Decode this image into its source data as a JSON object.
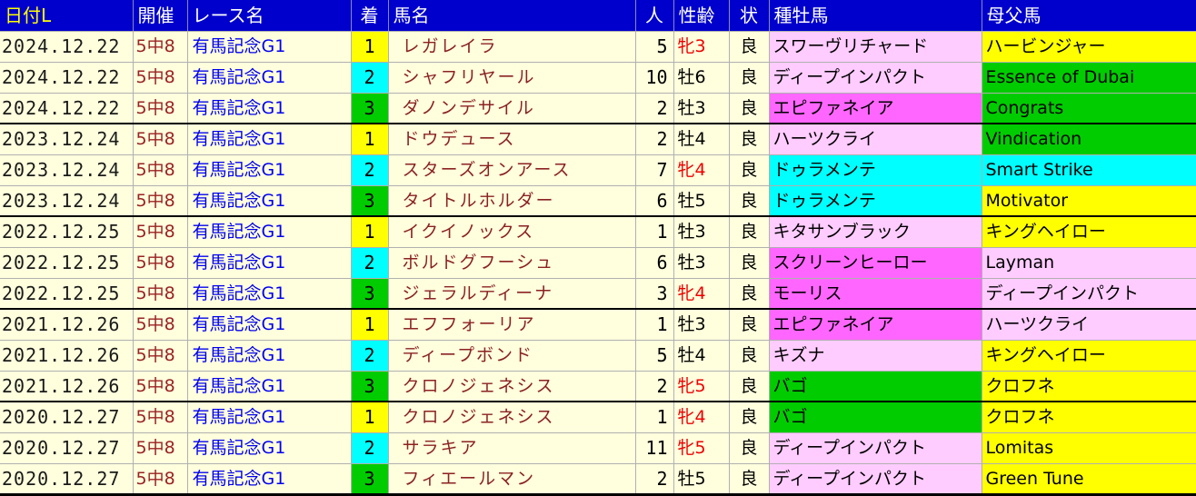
{
  "palette": {
    "header_bg": "#0000CC",
    "header_text": "#FFFFFF",
    "header_text_active": "#FFFF00",
    "row_bg": "#FFFFDE",
    "grid_line": "#B0B0B0",
    "group_line": "#000000",
    "date_text": "#1A1A1A",
    "meeting_text": "#992222",
    "race_text": "#0000EE",
    "horse_text": "#8B2222",
    "female_text": "#EE0000",
    "black_text": "#000000",
    "yellow": "#FFFF00",
    "cyan": "#00FFFF",
    "green": "#00CC00",
    "pink_light": "#FFCCFF",
    "pink_bright": "#FF66FF"
  },
  "table": {
    "columns": [
      {
        "key": "date",
        "label": "日付L"
      },
      {
        "key": "meeting",
        "label": "開催"
      },
      {
        "key": "race",
        "label": "レース名"
      },
      {
        "key": "finish",
        "label": "着"
      },
      {
        "key": "horse",
        "label": "馬名"
      },
      {
        "key": "pop",
        "label": "人"
      },
      {
        "key": "sexage",
        "label": "性齢"
      },
      {
        "key": "cond",
        "label": "状"
      },
      {
        "key": "sire",
        "label": "種牡馬"
      },
      {
        "key": "damsire",
        "label": "母父馬"
      }
    ],
    "rows": [
      {
        "date": "2024.12.22",
        "meeting": "5中8",
        "race": "有馬記念G1",
        "finish": "1",
        "finish_color": "yellow",
        "horse": "レガレイラ",
        "pop": "5",
        "sexage": "牝3",
        "female": true,
        "cond": "良",
        "sire": "スワーヴリチャード",
        "sire_color": "pink_light",
        "damsire": "ハービンジャー",
        "damsire_color": "yellow",
        "group_start": false
      },
      {
        "date": "2024.12.22",
        "meeting": "5中8",
        "race": "有馬記念G1",
        "finish": "2",
        "finish_color": "cyan",
        "horse": "シャフリヤール",
        "pop": "10",
        "sexage": "牡6",
        "female": false,
        "cond": "良",
        "sire": "ディープインパクト",
        "sire_color": "pink_light",
        "damsire": "Essence of Dubai",
        "damsire_color": "green",
        "group_start": false
      },
      {
        "date": "2024.12.22",
        "meeting": "5中8",
        "race": "有馬記念G1",
        "finish": "3",
        "finish_color": "green",
        "horse": "ダノンデサイル",
        "pop": "2",
        "sexage": "牡3",
        "female": false,
        "cond": "良",
        "sire": "エピファネイア",
        "sire_color": "pink_bright",
        "damsire": "Congrats",
        "damsire_color": "green",
        "group_start": false
      },
      {
        "date": "2023.12.24",
        "meeting": "5中8",
        "race": "有馬記念G1",
        "finish": "1",
        "finish_color": "yellow",
        "horse": "ドウデュース",
        "pop": "2",
        "sexage": "牡4",
        "female": false,
        "cond": "良",
        "sire": "ハーツクライ",
        "sire_color": "pink_light",
        "damsire": "Vindication",
        "damsire_color": "green",
        "group_start": true
      },
      {
        "date": "2023.12.24",
        "meeting": "5中8",
        "race": "有馬記念G1",
        "finish": "2",
        "finish_color": "cyan",
        "horse": "スターズオンアース",
        "pop": "7",
        "sexage": "牝4",
        "female": true,
        "cond": "良",
        "sire": "ドゥラメンテ",
        "sire_color": "cyan",
        "damsire": "Smart Strike",
        "damsire_color": "cyan",
        "group_start": false
      },
      {
        "date": "2023.12.24",
        "meeting": "5中8",
        "race": "有馬記念G1",
        "finish": "3",
        "finish_color": "green",
        "horse": "タイトルホルダー",
        "pop": "6",
        "sexage": "牡5",
        "female": false,
        "cond": "良",
        "sire": "ドゥラメンテ",
        "sire_color": "cyan",
        "damsire": "Motivator",
        "damsire_color": "yellow",
        "group_start": false
      },
      {
        "date": "2022.12.25",
        "meeting": "5中8",
        "race": "有馬記念G1",
        "finish": "1",
        "finish_color": "yellow",
        "horse": "イクイノックス",
        "pop": "1",
        "sexage": "牡3",
        "female": false,
        "cond": "良",
        "sire": "キタサンブラック",
        "sire_color": "pink_light",
        "damsire": "キングヘイロー",
        "damsire_color": "yellow",
        "group_start": true
      },
      {
        "date": "2022.12.25",
        "meeting": "5中8",
        "race": "有馬記念G1",
        "finish": "2",
        "finish_color": "cyan",
        "horse": "ボルドグフーシュ",
        "pop": "6",
        "sexage": "牡3",
        "female": false,
        "cond": "良",
        "sire": "スクリーンヒーロー",
        "sire_color": "pink_bright",
        "damsire": "Layman",
        "damsire_color": "pink_light",
        "group_start": false
      },
      {
        "date": "2022.12.25",
        "meeting": "5中8",
        "race": "有馬記念G1",
        "finish": "3",
        "finish_color": "green",
        "horse": "ジェラルディーナ",
        "pop": "3",
        "sexage": "牝4",
        "female": true,
        "cond": "良",
        "sire": "モーリス",
        "sire_color": "pink_bright",
        "damsire": "ディープインパクト",
        "damsire_color": "pink_light",
        "group_start": false
      },
      {
        "date": "2021.12.26",
        "meeting": "5中8",
        "race": "有馬記念G1",
        "finish": "1",
        "finish_color": "yellow",
        "horse": "エフフォーリア",
        "pop": "1",
        "sexage": "牡3",
        "female": false,
        "cond": "良",
        "sire": "エピファネイア",
        "sire_color": "pink_bright",
        "damsire": "ハーツクライ",
        "damsire_color": "pink_light",
        "group_start": true
      },
      {
        "date": "2021.12.26",
        "meeting": "5中8",
        "race": "有馬記念G1",
        "finish": "2",
        "finish_color": "cyan",
        "horse": "ディープボンド",
        "pop": "5",
        "sexage": "牡4",
        "female": false,
        "cond": "良",
        "sire": "キズナ",
        "sire_color": "pink_light",
        "damsire": "キングヘイロー",
        "damsire_color": "yellow",
        "group_start": false
      },
      {
        "date": "2021.12.26",
        "meeting": "5中8",
        "race": "有馬記念G1",
        "finish": "3",
        "finish_color": "green",
        "horse": "クロノジェネシス",
        "pop": "2",
        "sexage": "牝5",
        "female": true,
        "cond": "良",
        "sire": "バゴ",
        "sire_color": "green",
        "damsire": "クロフネ",
        "damsire_color": "yellow",
        "group_start": false
      },
      {
        "date": "2020.12.27",
        "meeting": "5中8",
        "race": "有馬記念G1",
        "finish": "1",
        "finish_color": "yellow",
        "horse": "クロノジェネシス",
        "pop": "1",
        "sexage": "牝4",
        "female": true,
        "cond": "良",
        "sire": "バゴ",
        "sire_color": "green",
        "damsire": "クロフネ",
        "damsire_color": "yellow",
        "group_start": true
      },
      {
        "date": "2020.12.27",
        "meeting": "5中8",
        "race": "有馬記念G1",
        "finish": "2",
        "finish_color": "cyan",
        "horse": "サラキア",
        "pop": "11",
        "sexage": "牝5",
        "female": true,
        "cond": "良",
        "sire": "ディープインパクト",
        "sire_color": "pink_light",
        "damsire": "Lomitas",
        "damsire_color": "yellow",
        "group_start": false
      },
      {
        "date": "2020.12.27",
        "meeting": "5中8",
        "race": "有馬記念G1",
        "finish": "3",
        "finish_color": "green",
        "horse": "フィエールマン",
        "pop": "2",
        "sexage": "牡5",
        "female": false,
        "cond": "良",
        "sire": "ディープインパクト",
        "sire_color": "pink_light",
        "damsire": "Green Tune",
        "damsire_color": "yellow",
        "group_start": false
      }
    ]
  }
}
